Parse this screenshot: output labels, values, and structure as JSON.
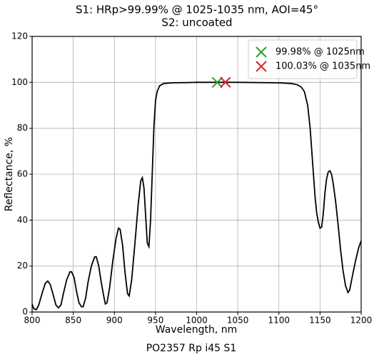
{
  "chart_data": {
    "type": "line",
    "title": "S1: HRp>99.99% @ 1025-1035 nm, AOI=45°",
    "subtitle": "S2: uncoated",
    "xlabel": "Wavelength, nm",
    "ylabel": "Reflectance, %",
    "footer": "PO2357 Rp i45 S1",
    "xlim": [
      800,
      1200
    ],
    "xticks": [
      800,
      850,
      900,
      950,
      1000,
      1050,
      1100,
      1150,
      1200
    ],
    "ylim": [
      0,
      120
    ],
    "yticks": [
      0,
      20,
      40,
      60,
      80,
      100,
      120
    ],
    "grid": true,
    "legend": "upper right",
    "series": [
      {
        "color": "#000000",
        "x": [
          800,
          802,
          805,
          808,
          812,
          816,
          819,
          822,
          826,
          829,
          832,
          835,
          838,
          842,
          846,
          848,
          851,
          854,
          857,
          860,
          862,
          865,
          868,
          872,
          876,
          878,
          881,
          884,
          887,
          889,
          891,
          894,
          898,
          902,
          905,
          907,
          910,
          913,
          916,
          918,
          921,
          925,
          929,
          932,
          934,
          936,
          938,
          940,
          942,
          944,
          946,
          948,
          950,
          952,
          955,
          960,
          970,
          990,
          1000,
          1050,
          1100,
          1115,
          1122,
          1127,
          1131,
          1135,
          1138,
          1141,
          1144,
          1146,
          1148,
          1150,
          1152,
          1154,
          1156,
          1158,
          1160,
          1162,
          1164,
          1166,
          1169,
          1172,
          1175,
          1178,
          1181,
          1184,
          1186,
          1189,
          1193,
          1197,
          1200
        ],
        "values": [
          3.5,
          1.5,
          1,
          3,
          8,
          12.5,
          13.5,
          12,
          7,
          3,
          1.8,
          3,
          8,
          14,
          17.5,
          17.5,
          15,
          9,
          4,
          2.3,
          2.3,
          6,
          13,
          20,
          24,
          24,
          20,
          13,
          7,
          3.5,
          4,
          10,
          22,
          32,
          36.5,
          36,
          29,
          17,
          8,
          7,
          14,
          30,
          47,
          57,
          58.5,
          54,
          42,
          30,
          28.5,
          40,
          60,
          80,
          92,
          96,
          98.5,
          99.5,
          99.8,
          99.9,
          100,
          100,
          99.8,
          99.5,
          99,
          98,
          96,
          90,
          80,
          65,
          50,
          43,
          39,
          36.5,
          37,
          43,
          52,
          58,
          61,
          61.5,
          60,
          56,
          48,
          38,
          27,
          18,
          11.5,
          8.5,
          9.5,
          15,
          22,
          28,
          31
        ]
      },
      {
        "name": "99.98% @ 1025nm",
        "color": "#2ca02c",
        "marker": "x",
        "x": [
          1025
        ],
        "values": [
          99.98
        ]
      },
      {
        "name": "100.03% @ 1035nm",
        "color": "#d62728",
        "marker": "x",
        "x": [
          1035
        ],
        "values": [
          100.03
        ]
      }
    ]
  }
}
